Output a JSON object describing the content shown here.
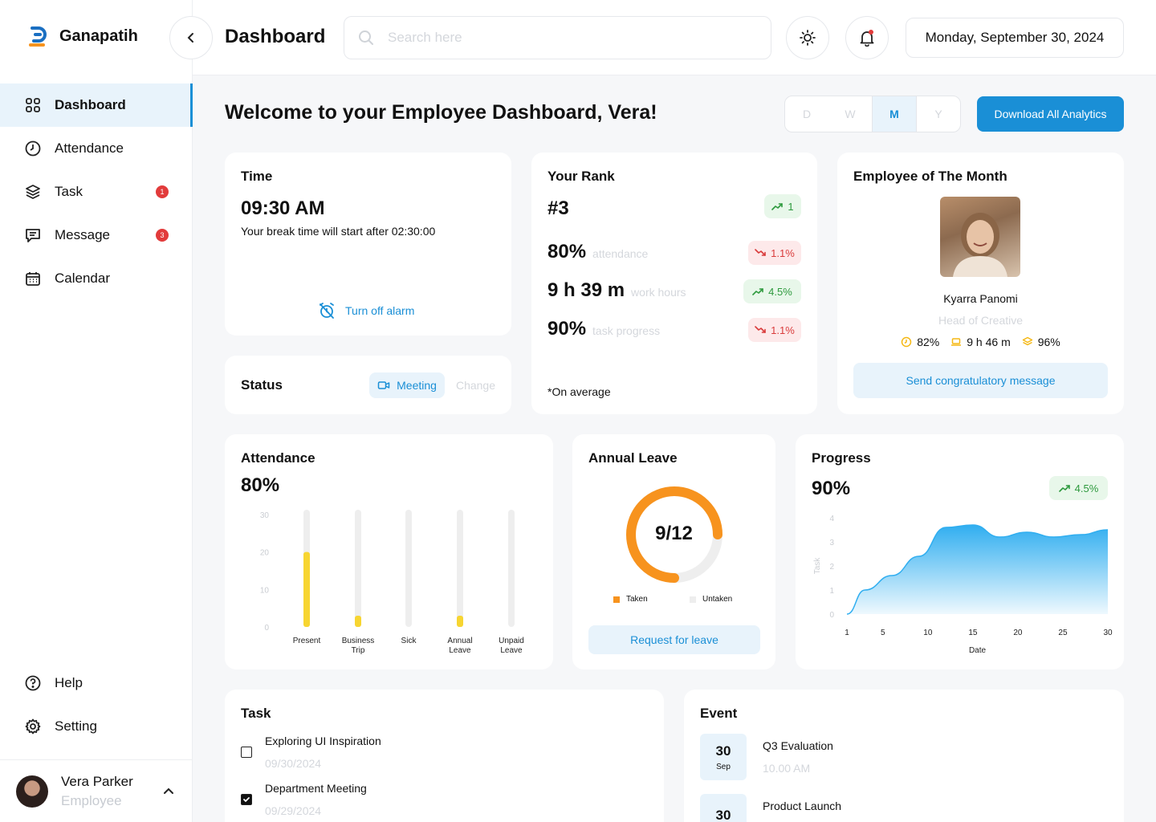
{
  "brand": {
    "name": "Ganapatih"
  },
  "header": {
    "title": "Dashboard",
    "search_placeholder": "Search here",
    "date": "Monday, September 30, 2024"
  },
  "sidebar": {
    "items": [
      {
        "label": "Dashboard",
        "icon": "grid-icon",
        "active": true
      },
      {
        "label": "Attendance",
        "icon": "clock-icon"
      },
      {
        "label": "Task",
        "icon": "layers-icon",
        "badge": "1"
      },
      {
        "label": "Message",
        "icon": "message-icon",
        "badge": "3"
      },
      {
        "label": "Calendar",
        "icon": "calendar-icon"
      }
    ],
    "bottom": [
      {
        "label": "Help",
        "icon": "help-icon"
      },
      {
        "label": "Setting",
        "icon": "gear-icon"
      }
    ],
    "user": {
      "name": "Vera Parker",
      "role": "Employee"
    }
  },
  "main": {
    "welcome": "Welcome to your Employee Dashboard, Vera!",
    "period_tabs": [
      "D",
      "W",
      "M",
      "Y"
    ],
    "period_active": "M",
    "download_label": "Download All Analytics"
  },
  "time_card": {
    "title": "Time",
    "time": "09:30 AM",
    "subtitle": "Your break time will start after 02:30:00",
    "alarm_label": "Turn off alarm"
  },
  "status_card": {
    "title": "Status",
    "status": "Meeting",
    "change_label": "Change"
  },
  "rank_card": {
    "title": "Your Rank",
    "rank": "#3",
    "rank_change": "1",
    "metrics": [
      {
        "value": "80%",
        "label": "attendance",
        "change": "1.1%",
        "trend": "down"
      },
      {
        "value": "9 h 39 m",
        "label": "work hours",
        "change": "4.5%",
        "trend": "up"
      },
      {
        "value": "90%",
        "label": "task progress",
        "change": "1.1%",
        "trend": "down"
      }
    ],
    "note": "*On average"
  },
  "employee_month": {
    "title": "Employee of The Month",
    "name": "Kyarra Panomi",
    "role": "Head of Creative",
    "stats": {
      "attendance": "82%",
      "hours": "9 h 46 m",
      "progress": "96%"
    },
    "button": "Send congratulatory message"
  },
  "attendance_card": {
    "title": "Attendance",
    "value": "80%"
  },
  "leave_card": {
    "title": "Annual Leave",
    "value": "9/12",
    "taken": 9,
    "total": 12,
    "legend_taken": "Taken",
    "legend_untaken": "Untaken",
    "button": "Request for leave",
    "colors": {
      "taken": "#f7931e",
      "untaken": "#eeeeee"
    }
  },
  "progress_card": {
    "title": "Progress",
    "value": "90%",
    "change": "4.5%"
  },
  "task_card": {
    "title": "Task",
    "items": [
      {
        "title": "Exploring UI Inspiration",
        "date": "09/30/2024",
        "done": false
      },
      {
        "title": "Department Meeting",
        "date": "09/29/2024",
        "done": true
      }
    ]
  },
  "event_card": {
    "title": "Event",
    "items": [
      {
        "day": "30",
        "month": "Sep",
        "title": "Q3 Evaluation",
        "time": "10.00 AM"
      },
      {
        "day": "30",
        "month": "",
        "title": "Product Launch",
        "time": ""
      }
    ]
  },
  "chart_data": [
    {
      "type": "bar",
      "title": "Attendance",
      "categories": [
        "Present",
        "Business Trip",
        "Sick",
        "Annual Leave",
        "Unpaid Leave"
      ],
      "values": [
        20,
        3,
        0,
        3,
        0
      ],
      "yticks": [
        0,
        10,
        20,
        30
      ],
      "ylim": [
        0,
        30
      ],
      "color": "#f7d531",
      "track_color": "#eeeeee"
    },
    {
      "type": "area",
      "title": "Progress",
      "xlabel": "Date",
      "ylabel": "Task",
      "x": [
        1,
        3,
        6,
        9,
        12,
        15,
        18,
        21,
        24,
        27,
        30
      ],
      "values": [
        0,
        1,
        1.6,
        2.4,
        3.6,
        3.7,
        3.2,
        3.4,
        3.2,
        3.3,
        3.5
      ],
      "xticks": [
        1,
        5,
        10,
        15,
        20,
        25,
        30
      ],
      "yticks": [
        0,
        1,
        2,
        3,
        4
      ],
      "xlim": [
        1,
        30
      ],
      "ylim": [
        0,
        4
      ],
      "color": "#30aef0"
    }
  ]
}
